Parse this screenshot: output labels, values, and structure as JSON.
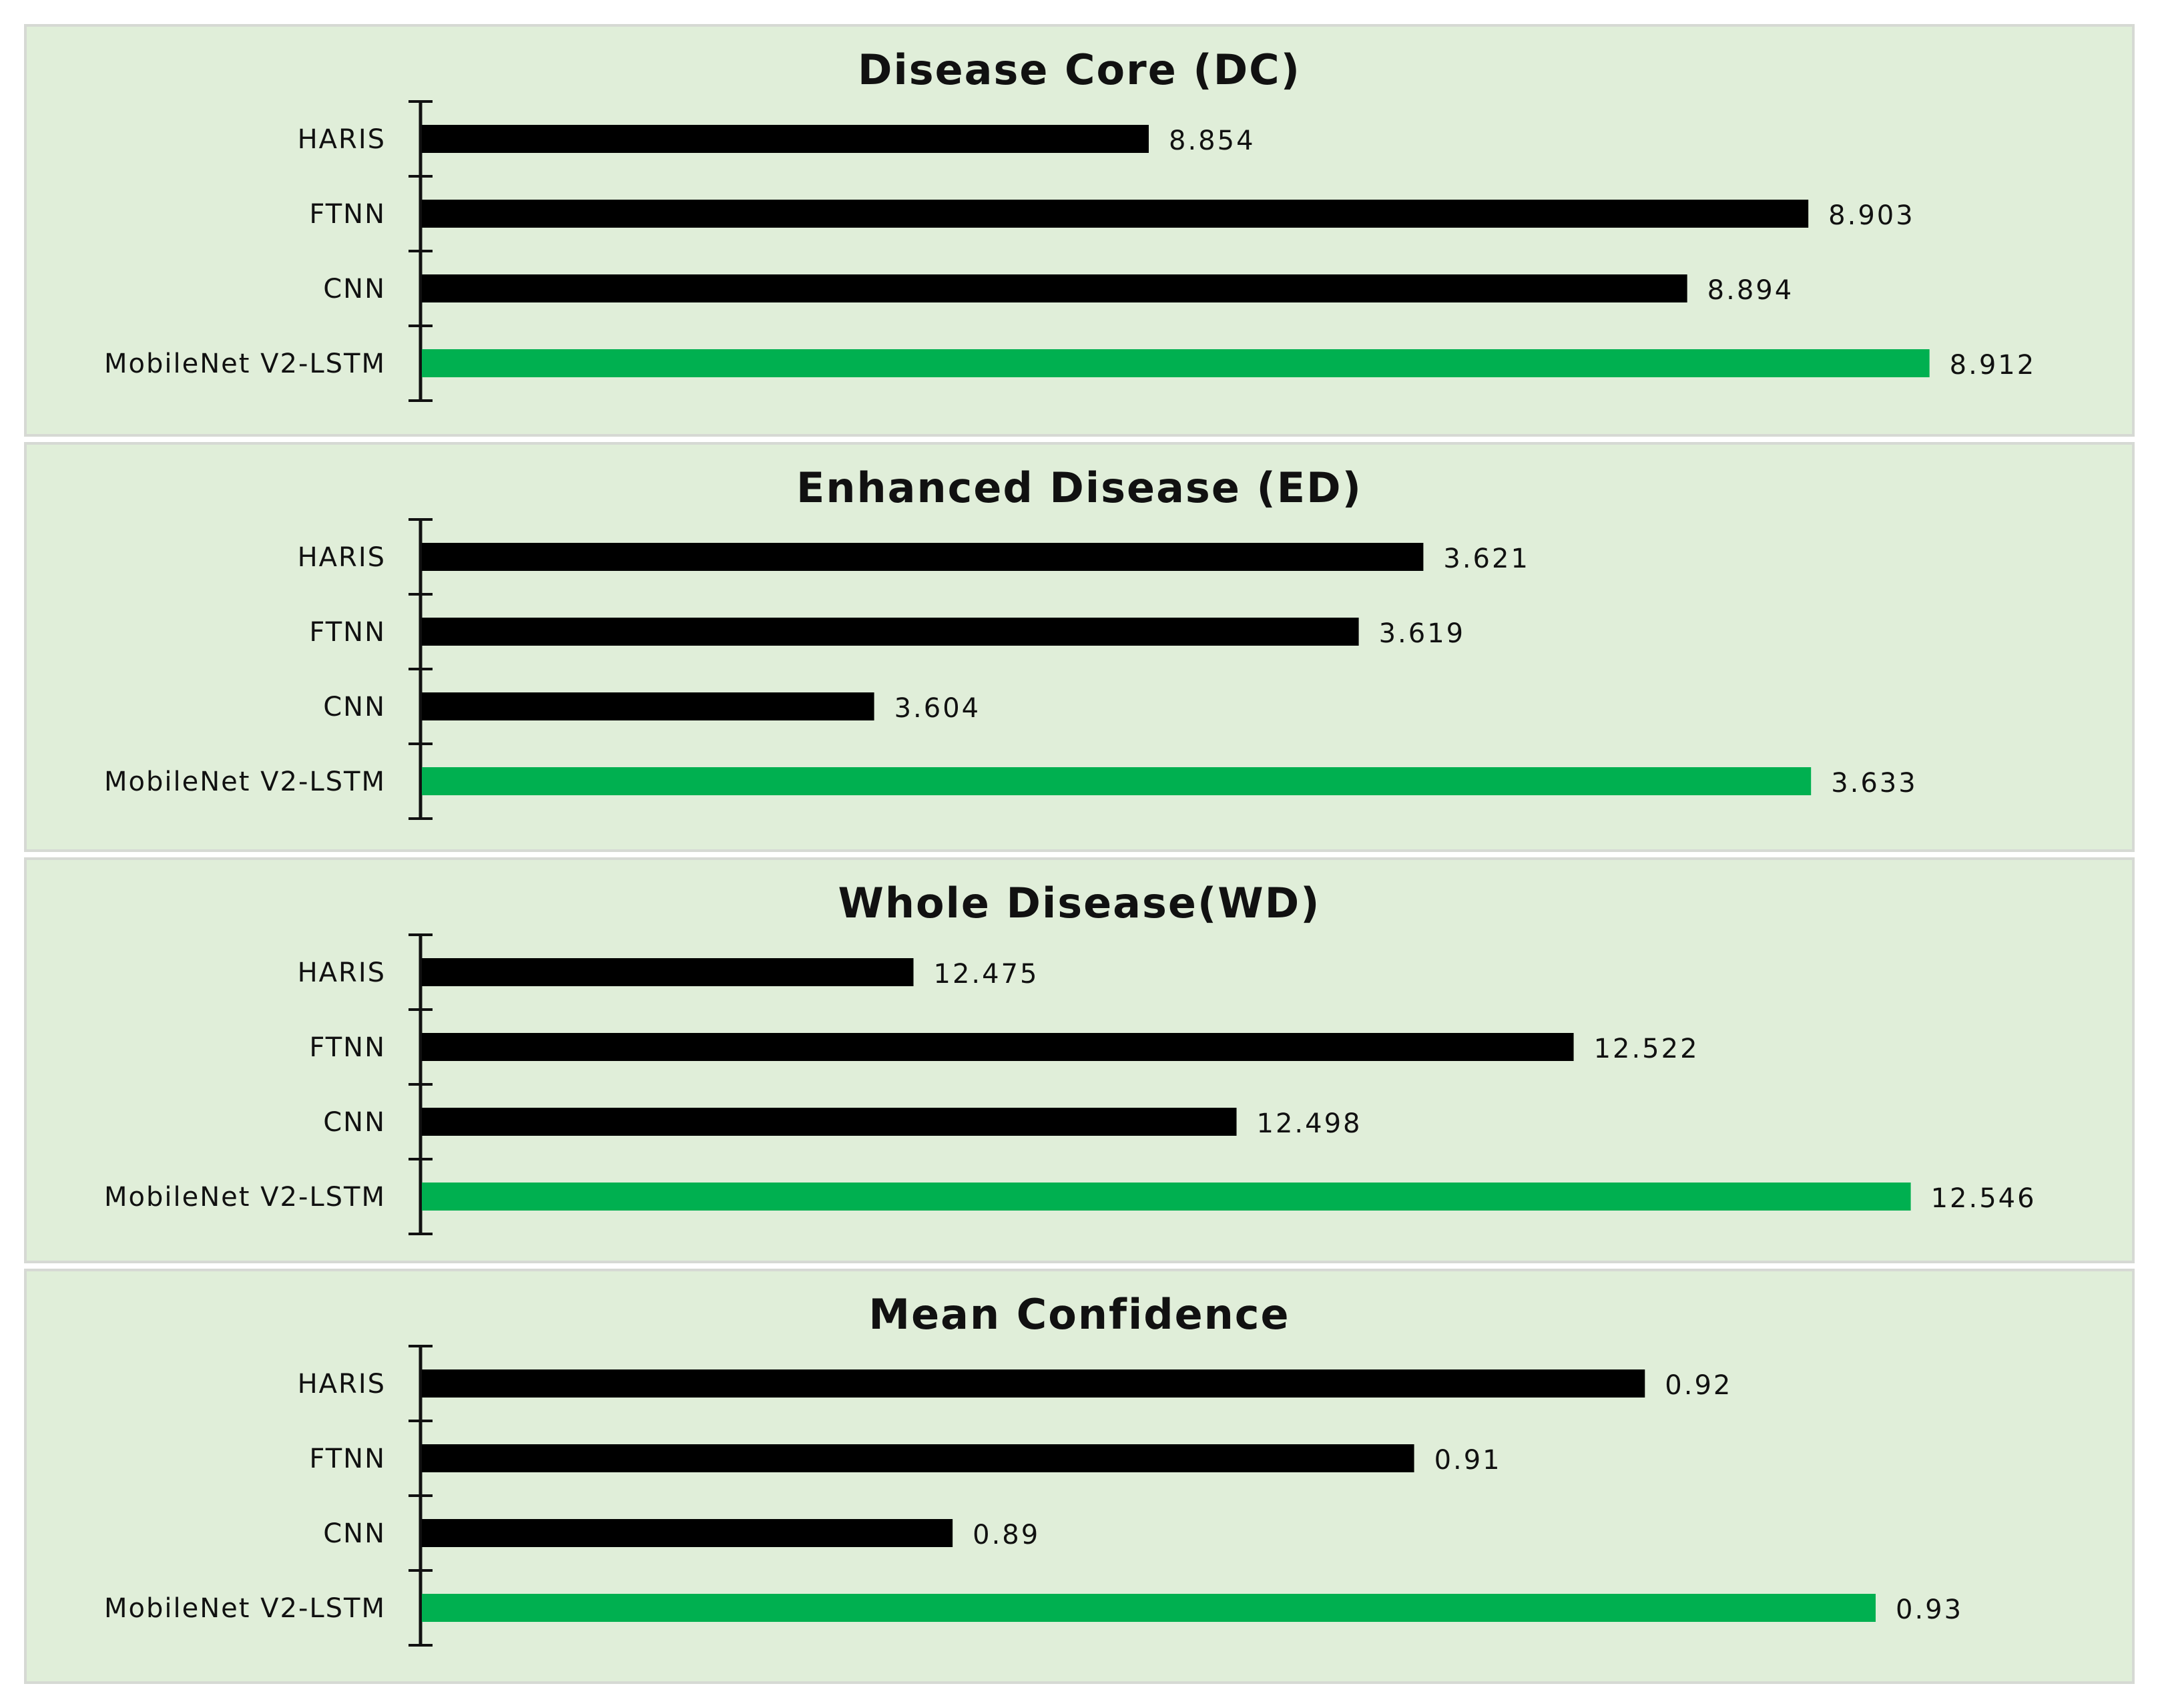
{
  "colors": {
    "panel_background": "#e0eed9",
    "bar_default": "#000000",
    "bar_highlight": "#00b050"
  },
  "chart_data": [
    {
      "type": "bar",
      "orientation": "horizontal",
      "title": "Disease Core (DC)",
      "categories": [
        "HARIS",
        "FTNN",
        "CNN",
        "MobileNet V2-LSTM"
      ],
      "values": [
        8.854,
        8.903,
        8.894,
        8.912
      ],
      "value_labels": [
        "8.854",
        "8.903",
        "8.894",
        "8.912"
      ],
      "highlight_category": "MobileNet V2-LSTM",
      "xlim": [
        8.8,
        8.92
      ],
      "grid": false,
      "legend": "none"
    },
    {
      "type": "bar",
      "orientation": "horizontal",
      "title": "Enhanced Disease (ED)",
      "categories": [
        "HARIS",
        "FTNN",
        "CNN",
        "MobileNet V2-LSTM"
      ],
      "values": [
        3.621,
        3.619,
        3.604,
        3.633
      ],
      "value_labels": [
        "3.621",
        "3.619",
        "3.604",
        "3.633"
      ],
      "highlight_category": "MobileNet V2-LSTM",
      "xlim": [
        3.59,
        3.64
      ],
      "grid": false,
      "legend": "none"
    },
    {
      "type": "bar",
      "orientation": "horizontal",
      "title": "Whole Disease(WD)",
      "categories": [
        "HARIS",
        "FTNN",
        "CNN",
        "MobileNet V2-LSTM"
      ],
      "values": [
        12.475,
        12.522,
        12.498,
        12.546
      ],
      "value_labels": [
        "12.475",
        "12.522",
        "12.498",
        "12.546"
      ],
      "highlight_category": "MobileNet V2-LSTM",
      "xlim": [
        12.44,
        12.555
      ],
      "grid": false,
      "legend": "none"
    },
    {
      "type": "bar",
      "orientation": "horizontal",
      "title": "Mean Confidence",
      "categories": [
        "HARIS",
        "FTNN",
        "CNN",
        "MobileNet V2-LSTM"
      ],
      "values": [
        0.92,
        0.91,
        0.89,
        0.93
      ],
      "value_labels": [
        "0.92",
        "0.91",
        "0.89",
        "0.93"
      ],
      "highlight_category": "MobileNet V2-LSTM",
      "xlim": [
        0.867,
        0.937
      ],
      "grid": false,
      "legend": "none"
    }
  ]
}
